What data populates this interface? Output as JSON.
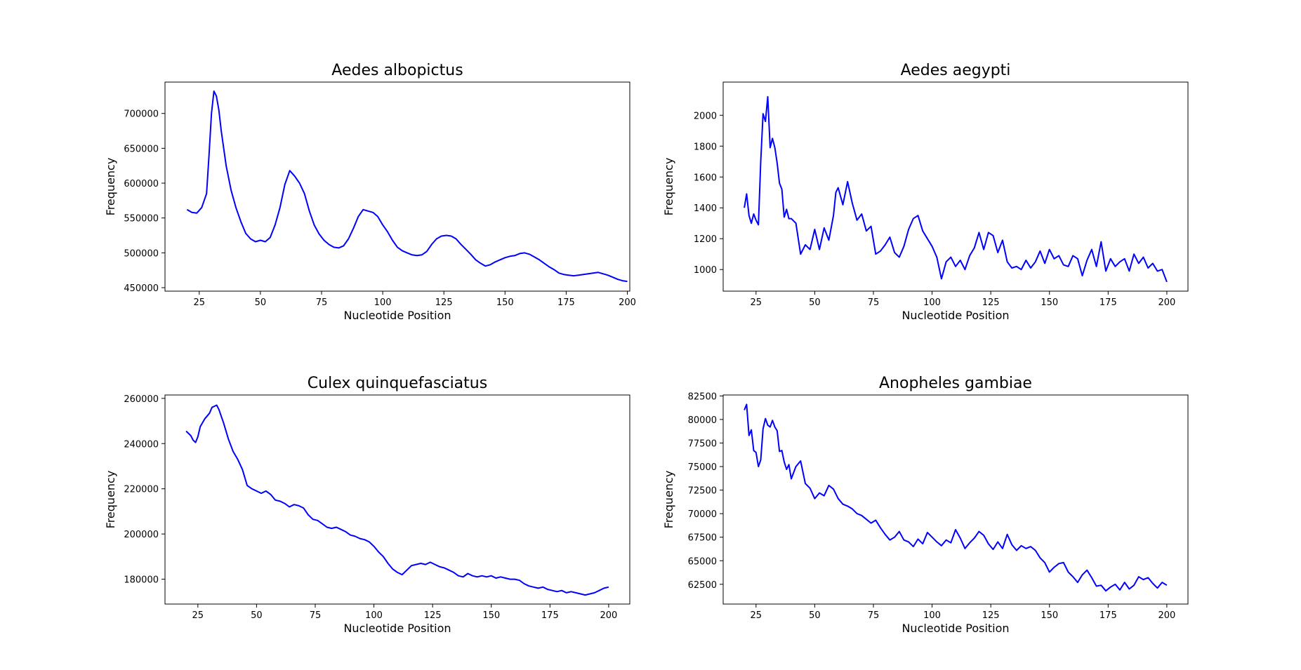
{
  "figure": {
    "background": "#ffffff",
    "line_color": "#0000ff"
  },
  "chart_data": [
    {
      "type": "line",
      "title": "Aedes albopictus",
      "xlabel": "Nucleotide Position",
      "ylabel": "Frequency",
      "xlim": [
        11,
        201
      ],
      "ylim": [
        445000,
        745000
      ],
      "xticks": [
        25,
        50,
        75,
        100,
        125,
        150,
        175,
        200
      ],
      "yticks": [
        450000,
        500000,
        550000,
        600000,
        650000,
        700000
      ],
      "grid": false,
      "x": [
        20,
        22,
        24,
        26,
        28,
        29,
        30,
        31,
        32,
        33,
        34,
        36,
        38,
        40,
        42,
        44,
        46,
        48,
        50,
        52,
        54,
        56,
        58,
        60,
        62,
        64,
        66,
        68,
        70,
        72,
        74,
        76,
        78,
        80,
        82,
        84,
        86,
        88,
        90,
        92,
        94,
        96,
        98,
        100,
        102,
        104,
        106,
        108,
        110,
        112,
        114,
        116,
        118,
        120,
        122,
        124,
        126,
        128,
        130,
        132,
        134,
        136,
        138,
        140,
        142,
        144,
        146,
        148,
        150,
        152,
        154,
        156,
        158,
        160,
        162,
        164,
        166,
        168,
        170,
        172,
        174,
        176,
        178,
        180,
        182,
        184,
        186,
        188,
        190,
        192,
        194,
        196,
        198,
        200
      ],
      "series": [
        {
          "values": [
            562000,
            558000,
            557000,
            565000,
            585000,
            640000,
            700000,
            732000,
            725000,
            705000,
            675000,
            625000,
            590000,
            565000,
            545000,
            528000,
            520000,
            516000,
            518000,
            516000,
            522000,
            540000,
            565000,
            598000,
            618000,
            610000,
            600000,
            585000,
            560000,
            540000,
            527000,
            518000,
            512000,
            508000,
            507000,
            510000,
            520000,
            535000,
            552000,
            562000,
            560000,
            558000,
            552000,
            540000,
            530000,
            518000,
            508000,
            503000,
            500000,
            497000,
            496000,
            497000,
            502000,
            512000,
            520000,
            524000,
            525000,
            524000,
            520000,
            512000,
            505000,
            498000,
            490000,
            485000,
            481000,
            483000,
            487000,
            490000,
            493000,
            495000,
            496000,
            499000,
            500000,
            498000,
            494000,
            490000,
            485000,
            480000,
            476000,
            471000,
            469000,
            468000,
            467000,
            468000,
            469000,
            470000,
            471000,
            472000,
            470000,
            468000,
            465000,
            462000,
            460000,
            459000
          ]
        }
      ]
    },
    {
      "type": "line",
      "title": "Aedes aegypti",
      "xlabel": "Nucleotide Position",
      "ylabel": "Frequency",
      "xlim": [
        11,
        209
      ],
      "ylim": [
        860,
        2215
      ],
      "xticks": [
        25,
        50,
        75,
        100,
        125,
        150,
        175,
        200
      ],
      "yticks": [
        1000,
        1200,
        1400,
        1600,
        1800,
        2000
      ],
      "grid": false,
      "x": [
        20,
        21,
        22,
        23,
        24,
        25,
        26,
        27,
        28,
        29,
        30,
        31,
        32,
        33,
        34,
        35,
        36,
        37,
        38,
        39,
        40,
        42,
        44,
        46,
        48,
        50,
        52,
        54,
        56,
        58,
        59,
        60,
        62,
        64,
        66,
        68,
        70,
        72,
        74,
        76,
        78,
        80,
        82,
        84,
        86,
        88,
        90,
        92,
        94,
        96,
        98,
        100,
        102,
        104,
        106,
        108,
        110,
        112,
        114,
        116,
        118,
        120,
        122,
        124,
        126,
        128,
        130,
        132,
        134,
        136,
        138,
        140,
        142,
        144,
        146,
        148,
        150,
        152,
        154,
        156,
        158,
        160,
        162,
        164,
        166,
        168,
        170,
        172,
        174,
        176,
        178,
        180,
        182,
        184,
        186,
        188,
        190,
        192,
        194,
        196,
        198,
        200
      ],
      "series": [
        {
          "values": [
            1400,
            1490,
            1350,
            1300,
            1360,
            1320,
            1290,
            1700,
            2010,
            1960,
            2120,
            1790,
            1850,
            1790,
            1690,
            1560,
            1520,
            1340,
            1390,
            1330,
            1330,
            1300,
            1100,
            1160,
            1130,
            1260,
            1130,
            1270,
            1190,
            1350,
            1500,
            1530,
            1420,
            1570,
            1430,
            1320,
            1360,
            1250,
            1280,
            1100,
            1120,
            1160,
            1210,
            1110,
            1080,
            1150,
            1260,
            1330,
            1350,
            1250,
            1200,
            1150,
            1080,
            940,
            1050,
            1080,
            1020,
            1060,
            1000,
            1090,
            1140,
            1240,
            1130,
            1240,
            1220,
            1110,
            1190,
            1050,
            1010,
            1020,
            1000,
            1060,
            1010,
            1050,
            1120,
            1040,
            1130,
            1070,
            1090,
            1030,
            1020,
            1090,
            1070,
            960,
            1060,
            1130,
            1020,
            1180,
            990,
            1070,
            1020,
            1050,
            1070,
            990,
            1100,
            1040,
            1080,
            1010,
            1040,
            990,
            1000,
            920
          ]
        }
      ]
    },
    {
      "type": "line",
      "title": "Culex quinquefasciatus",
      "xlabel": "Nucleotide Position",
      "ylabel": "Frequency",
      "xlim": [
        11,
        209
      ],
      "ylim": [
        169000,
        261500
      ],
      "xticks": [
        25,
        50,
        75,
        100,
        125,
        150,
        175,
        200
      ],
      "yticks": [
        180000,
        200000,
        220000,
        240000,
        260000
      ],
      "grid": false,
      "x": [
        20,
        22,
        23,
        24,
        25,
        26,
        28,
        30,
        31,
        32,
        33,
        34,
        36,
        38,
        40,
        42,
        44,
        46,
        48,
        50,
        52,
        54,
        56,
        58,
        60,
        62,
        64,
        66,
        68,
        70,
        72,
        74,
        76,
        78,
        80,
        82,
        84,
        86,
        88,
        90,
        92,
        94,
        96,
        98,
        100,
        102,
        104,
        106,
        108,
        110,
        112,
        114,
        116,
        118,
        120,
        122,
        124,
        126,
        128,
        130,
        132,
        134,
        136,
        138,
        140,
        142,
        144,
        146,
        148,
        150,
        152,
        154,
        156,
        158,
        160,
        162,
        164,
        166,
        168,
        170,
        172,
        174,
        176,
        178,
        180,
        182,
        184,
        186,
        188,
        190,
        192,
        194,
        196,
        198,
        200
      ],
      "series": [
        {
          "values": [
            245500,
            243500,
            241500,
            240500,
            243000,
            247500,
            251000,
            253500,
            256000,
            256500,
            257000,
            255000,
            249000,
            242000,
            236500,
            233000,
            228500,
            221500,
            220000,
            219000,
            218000,
            219000,
            217500,
            215000,
            214500,
            213500,
            212000,
            213000,
            212500,
            211500,
            208500,
            206500,
            206000,
            204500,
            203000,
            202500,
            203000,
            202000,
            201000,
            199500,
            199000,
            198000,
            197500,
            196500,
            194500,
            192000,
            190000,
            187000,
            184500,
            183000,
            182000,
            184000,
            186000,
            186500,
            187000,
            186500,
            187500,
            186500,
            185500,
            185000,
            184000,
            183000,
            181500,
            181000,
            182500,
            181500,
            181000,
            181500,
            181000,
            181500,
            180500,
            181000,
            180500,
            180000,
            180000,
            179500,
            178000,
            177000,
            176500,
            176000,
            176500,
            175500,
            175000,
            174500,
            175000,
            174000,
            174500,
            174000,
            173500,
            173000,
            173500,
            174000,
            175000,
            176000,
            176500
          ]
        }
      ]
    },
    {
      "type": "line",
      "title": "Anopheles gambiae",
      "xlabel": "Nucleotide Position",
      "ylabel": "Frequency",
      "xlim": [
        11,
        209
      ],
      "ylim": [
        60400,
        82600
      ],
      "xticks": [
        25,
        50,
        75,
        100,
        125,
        150,
        175,
        200
      ],
      "yticks": [
        62500,
        65000,
        67500,
        70000,
        72500,
        75000,
        77500,
        80000,
        82500
      ],
      "grid": false,
      "x": [
        20,
        21,
        22,
        23,
        24,
        25,
        26,
        27,
        28,
        29,
        30,
        31,
        32,
        33,
        34,
        35,
        36,
        37,
        38,
        39,
        40,
        42,
        44,
        46,
        48,
        50,
        52,
        54,
        56,
        58,
        60,
        62,
        64,
        66,
        68,
        70,
        72,
        74,
        76,
        78,
        80,
        82,
        84,
        86,
        88,
        90,
        92,
        94,
        96,
        98,
        100,
        102,
        104,
        106,
        108,
        110,
        112,
        114,
        116,
        118,
        120,
        122,
        124,
        126,
        128,
        130,
        132,
        134,
        136,
        138,
        140,
        142,
        144,
        146,
        148,
        150,
        152,
        154,
        156,
        158,
        160,
        162,
        164,
        166,
        168,
        170,
        172,
        174,
        176,
        178,
        180,
        182,
        184,
        186,
        188,
        190,
        192,
        194,
        196,
        198,
        200
      ],
      "series": [
        {
          "values": [
            81000,
            81600,
            78300,
            78900,
            76700,
            76500,
            75000,
            75700,
            79000,
            80100,
            79400,
            79200,
            79900,
            79200,
            78800,
            76600,
            76700,
            75500,
            74700,
            75200,
            73700,
            75000,
            75600,
            73200,
            72700,
            71600,
            72200,
            71900,
            73000,
            72600,
            71600,
            71000,
            70800,
            70500,
            70000,
            69800,
            69400,
            69000,
            69300,
            68500,
            67800,
            67200,
            67500,
            68100,
            67200,
            67000,
            66500,
            67300,
            66800,
            68000,
            67500,
            67000,
            66600,
            67200,
            66900,
            68300,
            67400,
            66300,
            66900,
            67400,
            68100,
            67700,
            66800,
            66200,
            67000,
            66300,
            67800,
            66700,
            66100,
            66600,
            66300,
            66500,
            66100,
            65300,
            64800,
            63800,
            64300,
            64700,
            64800,
            63800,
            63300,
            62700,
            63500,
            64000,
            63200,
            62300,
            62400,
            61800,
            62200,
            62500,
            61900,
            62700,
            62000,
            62400,
            63300,
            63000,
            63200,
            62600,
            62100,
            62700,
            62400
          ]
        }
      ]
    }
  ]
}
